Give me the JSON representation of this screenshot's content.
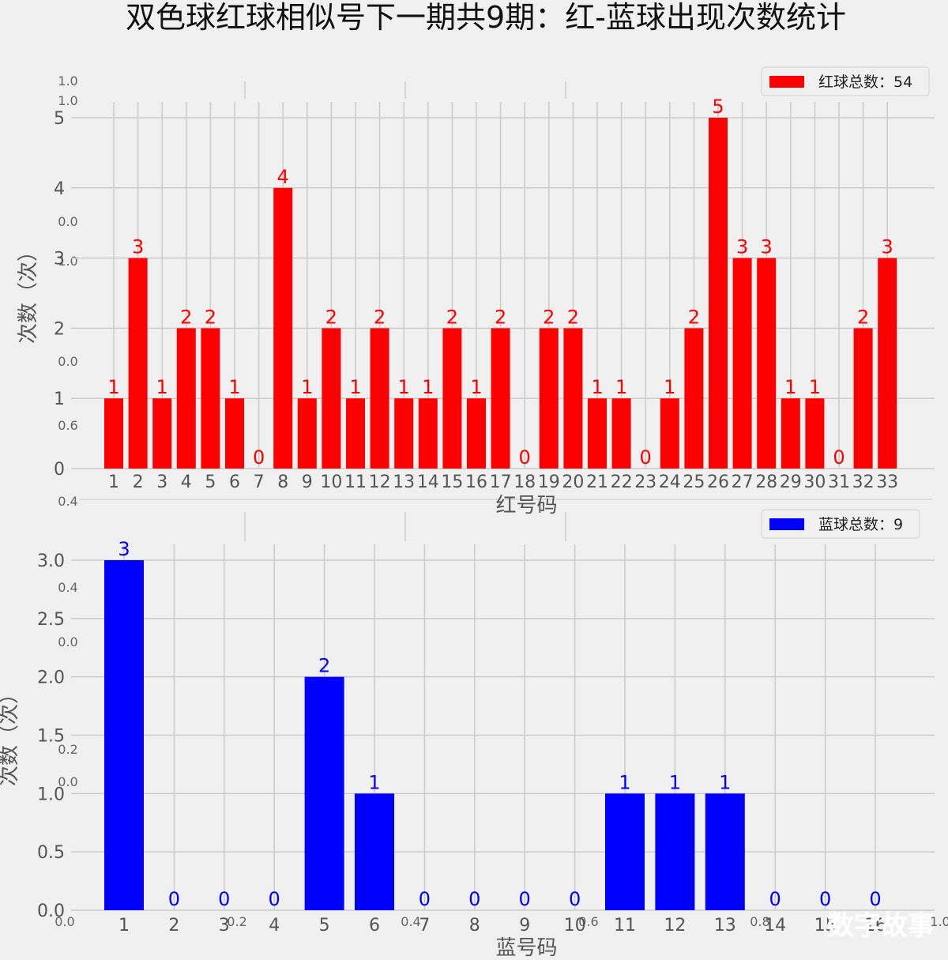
{
  "title": "双色球红球相似号下一期共9期：红-蓝球出现次数统计",
  "watermark": "数字故事",
  "background_ticks": [
    "0.0",
    "0.2",
    "0.4",
    "0.6",
    "0.8",
    "1.0"
  ],
  "chart_data": [
    {
      "type": "bar",
      "color": "#ff0000",
      "categories": [
        "1",
        "2",
        "3",
        "4",
        "5",
        "6",
        "7",
        "8",
        "9",
        "10",
        "11",
        "12",
        "13",
        "14",
        "15",
        "16",
        "17",
        "18",
        "19",
        "20",
        "21",
        "22",
        "23",
        "24",
        "25",
        "26",
        "27",
        "28",
        "29",
        "30",
        "31",
        "32",
        "33"
      ],
      "values": [
        1,
        3,
        1,
        2,
        2,
        1,
        0,
        4,
        1,
        2,
        1,
        2,
        1,
        1,
        2,
        1,
        2,
        0,
        2,
        2,
        1,
        1,
        0,
        1,
        2,
        5,
        3,
        3,
        1,
        1,
        0,
        2,
        3
      ],
      "xlabel": "红号码",
      "ylabel": "次数（次）",
      "yticks": [
        "0",
        "1",
        "2",
        "3",
        "4",
        "5"
      ],
      "ylim": [
        0,
        5
      ],
      "legend": "红球总数：54",
      "legend_position": "top-right",
      "grid": true
    },
    {
      "type": "bar",
      "color": "#0000ff",
      "categories": [
        "1",
        "2",
        "3",
        "4",
        "5",
        "6",
        "7",
        "8",
        "9",
        "10",
        "11",
        "12",
        "13",
        "14",
        "15",
        "16"
      ],
      "values": [
        3,
        0,
        0,
        0,
        2,
        1,
        0,
        0,
        0,
        0,
        1,
        1,
        1,
        0,
        0,
        0
      ],
      "xlabel": "蓝号码",
      "ylabel": "次数（次）",
      "yticks": [
        "0.0",
        "0.5",
        "1.0",
        "1.5",
        "2.0",
        "2.5",
        "3.0"
      ],
      "ylim": [
        0,
        3
      ],
      "legend": "蓝球总数：9",
      "legend_position": "top-right",
      "grid": true
    }
  ]
}
